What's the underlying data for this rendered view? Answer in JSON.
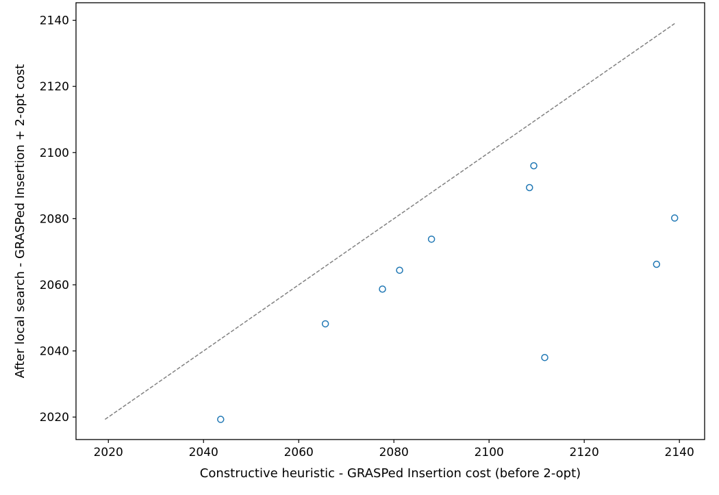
{
  "chart_data": {
    "type": "scatter",
    "title": "",
    "xlabel": "Constructive heuristic - GRASPed Insertion cost (before 2-opt)",
    "ylabel": "After local search - GRASPed Insertion + 2-opt cost",
    "xlim": [
      2013.2,
      2145.3
    ],
    "ylim": [
      2013.2,
      2145.3
    ],
    "xticks": [
      2020,
      2040,
      2060,
      2080,
      2100,
      2120,
      2140
    ],
    "yticks": [
      2020,
      2040,
      2060,
      2080,
      2100,
      2120,
      2140
    ],
    "grid": false,
    "marker_color": "#1f77b4",
    "reference_line": {
      "style": "dashed",
      "color": "#808080",
      "from": [
        2019.3,
        2019.3
      ],
      "to": [
        2139.0,
        2139.0
      ]
    },
    "points": [
      {
        "x": 2043.6,
        "y": 2019.3
      },
      {
        "x": 2065.6,
        "y": 2048.2
      },
      {
        "x": 2077.6,
        "y": 2058.7
      },
      {
        "x": 2081.2,
        "y": 2064.4
      },
      {
        "x": 2087.9,
        "y": 2073.8
      },
      {
        "x": 2108.5,
        "y": 2089.4
      },
      {
        "x": 2109.4,
        "y": 2096.0
      },
      {
        "x": 2111.7,
        "y": 2038.0
      },
      {
        "x": 2135.2,
        "y": 2066.2
      },
      {
        "x": 2139.0,
        "y": 2080.2
      }
    ]
  }
}
